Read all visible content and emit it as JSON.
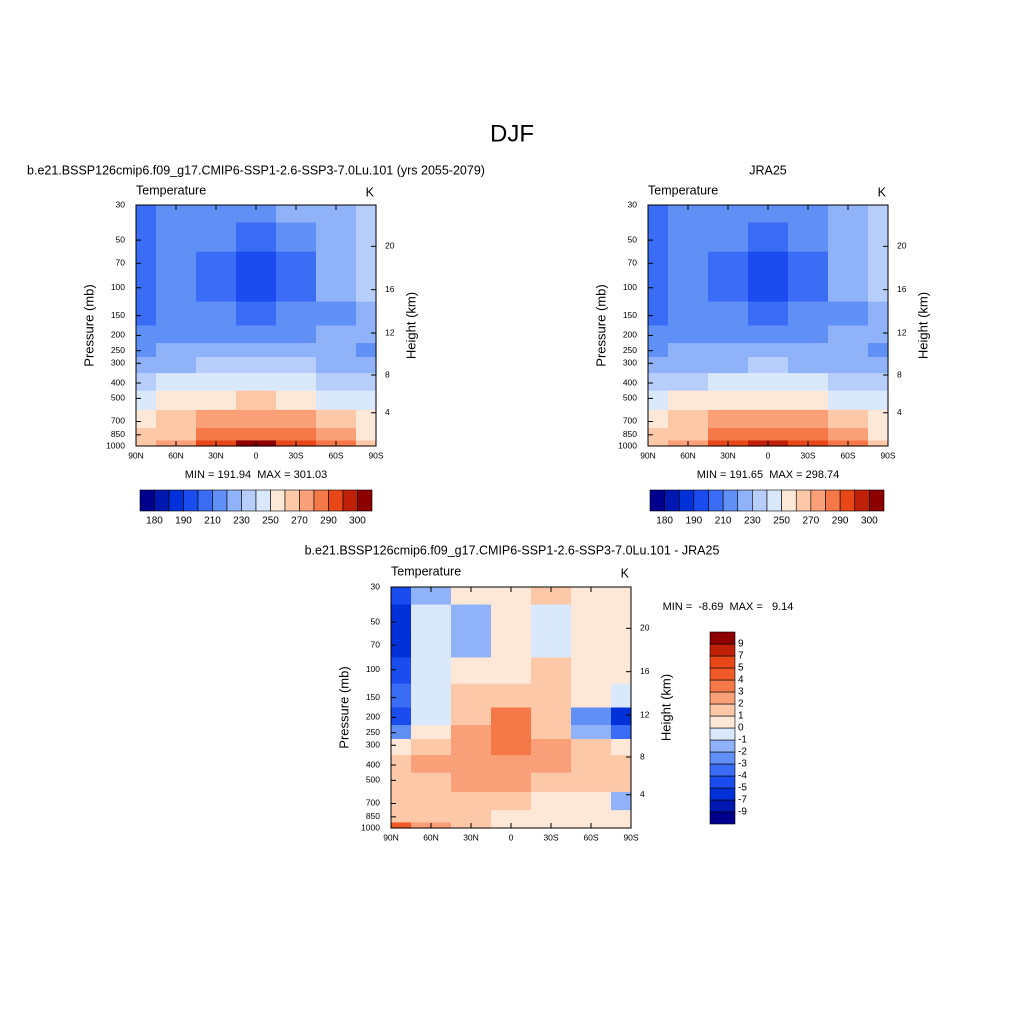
{
  "title": "DJF",
  "chart_data": [
    {
      "type": "contour",
      "title": "b.e21.BSSP126cmip6.f09_g17.CMIP6-SSP1-2.6-SSP3-7.0Lu.101 (yrs 2055-2079)",
      "left_string": "Temperature",
      "right_string": "K",
      "stats": "MIN = 191.94  MAX = 301.03",
      "ylabel": "Pressure (mb)",
      "y2label": "Height (km)",
      "yscale": "log",
      "x": [
        90,
        60,
        30,
        0,
        -30,
        -60,
        -90
      ],
      "y": [
        30,
        50,
        70,
        100,
        150,
        200,
        250,
        300,
        400,
        500,
        700,
        850,
        1000
      ],
      "xlim": [
        90,
        -90
      ],
      "ylim": [
        1000,
        30
      ],
      "y2lim": [
        0.1,
        23.8
      ],
      "xticks": [
        {
          "value": 90,
          "label": "90N"
        },
        {
          "value": 60,
          "label": "60N"
        },
        {
          "value": 30,
          "label": "30N"
        },
        0,
        {
          "value": -30,
          "label": "30S"
        },
        {
          "value": -60,
          "label": "60S"
        },
        {
          "value": -90,
          "label": "90S"
        }
      ],
      "yticks": [
        30,
        50,
        70,
        100,
        150,
        200,
        250,
        300,
        400,
        500,
        700,
        850,
        1000
      ],
      "y2ticks": [
        4,
        8,
        12,
        16,
        20
      ],
      "values": [
        [
          206,
          214,
          219,
          216,
          220,
          226,
          236
        ],
        [
          205,
          213,
          210,
          205,
          212,
          224,
          236
        ],
        [
          204,
          214,
          206,
          198,
          206,
          222,
          234
        ],
        [
          205,
          214,
          206,
          198,
          207,
          220,
          232
        ],
        [
          206,
          215,
          212,
          206,
          212,
          219,
          226
        ],
        [
          212,
          218,
          218,
          216,
          218,
          220,
          222
        ],
        [
          218,
          221,
          223,
          224,
          223,
          222,
          214
        ],
        [
          226,
          227,
          231,
          234,
          230,
          226,
          221
        ],
        [
          236,
          241,
          246,
          249,
          246,
          239,
          232
        ],
        [
          246,
          251,
          256,
          261,
          256,
          249,
          241
        ],
        [
          256,
          263,
          273,
          279,
          274,
          263,
          250
        ],
        [
          262,
          268,
          283,
          288,
          284,
          271,
          256
        ],
        [
          265,
          276,
          292,
          300,
          293,
          281,
          261
        ]
      ],
      "colorbar": {
        "orientation": "horizontal",
        "levels": [
          180,
          185,
          190,
          200,
          210,
          220,
          230,
          240,
          250,
          260,
          270,
          280,
          290,
          295,
          300
        ],
        "ticks": [
          180,
          190,
          210,
          230,
          250,
          270,
          290,
          300
        ],
        "colors": [
          "#00008c",
          "#0018b0",
          "#0030d8",
          "#1a4cf0",
          "#3a6cf5",
          "#6090f5",
          "#90b2f8",
          "#b8cefa",
          "#dae8fc",
          "#fde8d8",
          "#fcc8a8",
          "#f9a078",
          "#f47848",
          "#e84818",
          "#c02008",
          "#8c0000"
        ]
      }
    },
    {
      "type": "contour",
      "title": "JRA25",
      "left_string": "Temperature",
      "right_string": "K",
      "stats": "MIN = 191.65  MAX = 298.74",
      "ylabel": "Pressure (mb)",
      "y2label": "Height (km)",
      "yscale": "log",
      "x": [
        90,
        60,
        30,
        0,
        -30,
        -60,
        -90
      ],
      "y": [
        30,
        50,
        70,
        100,
        150,
        200,
        250,
        300,
        400,
        500,
        700,
        850,
        1000
      ],
      "xlim": [
        90,
        -90
      ],
      "ylim": [
        1000,
        30
      ],
      "y2lim": [
        0.1,
        23.8
      ],
      "xticks": [
        {
          "value": 90,
          "label": "90N"
        },
        {
          "value": 60,
          "label": "60N"
        },
        {
          "value": 30,
          "label": "30N"
        },
        0,
        {
          "value": -30,
          "label": "30S"
        },
        {
          "value": -60,
          "label": "60S"
        },
        {
          "value": -90,
          "label": "90S"
        }
      ],
      "yticks": [
        30,
        50,
        70,
        100,
        150,
        200,
        250,
        300,
        400,
        500,
        700,
        850,
        1000
      ],
      "y2ticks": [
        4,
        8,
        12,
        16,
        20
      ],
      "values": [
        [
          208,
          214,
          218,
          215,
          219,
          225,
          234
        ],
        [
          206,
          213,
          211,
          206,
          212,
          223,
          234
        ],
        [
          205,
          214,
          206,
          198,
          206,
          222,
          233
        ],
        [
          205,
          214,
          206,
          198,
          207,
          220,
          232
        ],
        [
          207,
          215,
          211,
          205,
          211,
          219,
          227
        ],
        [
          213,
          218,
          217,
          214,
          217,
          221,
          225
        ],
        [
          218,
          221,
          222,
          221,
          222,
          223,
          218
        ],
        [
          225,
          226,
          229,
          231,
          229,
          226,
          222
        ],
        [
          235,
          239,
          244,
          247,
          244,
          238,
          232
        ],
        [
          245,
          250,
          254,
          259,
          254,
          248,
          240
        ],
        [
          255,
          262,
          272,
          278,
          273,
          262,
          251
        ],
        [
          260,
          266,
          282,
          287,
          283,
          270,
          256
        ],
        [
          262,
          274,
          291,
          298,
          292,
          280,
          260
        ]
      ],
      "colorbar": {
        "orientation": "horizontal",
        "levels": [
          180,
          185,
          190,
          200,
          210,
          220,
          230,
          240,
          250,
          260,
          270,
          280,
          290,
          295,
          300
        ],
        "ticks": [
          180,
          190,
          210,
          230,
          250,
          270,
          290,
          300
        ],
        "colors": [
          "#00008c",
          "#0018b0",
          "#0030d8",
          "#1a4cf0",
          "#3a6cf5",
          "#6090f5",
          "#90b2f8",
          "#b8cefa",
          "#dae8fc",
          "#fde8d8",
          "#fcc8a8",
          "#f9a078",
          "#f47848",
          "#e84818",
          "#c02008",
          "#8c0000"
        ]
      }
    },
    {
      "type": "contour",
      "title": "b.e21.BSSP126cmip6.f09_g17.CMIP6-SSP1-2.6-SSP3-7.0Lu.101 - JRA25",
      "left_string": "Temperature",
      "right_string": "K",
      "stats": "MIN =  -8.69  MAX =   9.14",
      "ylabel": "Pressure (mb)",
      "y2label": "Height (km)",
      "yscale": "log",
      "x": [
        90,
        60,
        30,
        0,
        -30,
        -60,
        -90
      ],
      "y": [
        30,
        50,
        70,
        100,
        150,
        200,
        250,
        300,
        400,
        500,
        700,
        850,
        1000
      ],
      "xlim": [
        90,
        -90
      ],
      "ylim": [
        1000,
        30
      ],
      "y2lim": [
        0.1,
        23.8
      ],
      "xticks": [
        {
          "value": 90,
          "label": "90N"
        },
        {
          "value": 60,
          "label": "60N"
        },
        {
          "value": 30,
          "label": "30N"
        },
        0,
        {
          "value": -30,
          "label": "30S"
        },
        {
          "value": -60,
          "label": "60S"
        },
        {
          "value": -90,
          "label": "90S"
        }
      ],
      "yticks": [
        30,
        50,
        70,
        100,
        150,
        200,
        250,
        300,
        400,
        500,
        700,
        850,
        1000
      ],
      "y2ticks": [
        4,
        8,
        12,
        16,
        20
      ],
      "values": [
        [
          -5,
          -2,
          0.5,
          0.5,
          1,
          0.5,
          0.5
        ],
        [
          -6,
          -1,
          -2,
          0.5,
          -1,
          0.5,
          0.5
        ],
        [
          -6,
          -1,
          -2,
          0.5,
          -1,
          0.5,
          0.5
        ],
        [
          -5,
          -1,
          0.5,
          0.5,
          1.5,
          0.5,
          0.5
        ],
        [
          -4,
          -1,
          1.5,
          1.5,
          1.5,
          0.5,
          -1
        ],
        [
          -5,
          -1,
          1.5,
          3.5,
          1.5,
          -3,
          -6
        ],
        [
          -3,
          0.5,
          2,
          3.5,
          1.5,
          -2,
          -4
        ],
        [
          0.5,
          1.5,
          2.5,
          3,
          2,
          1,
          0.5
        ],
        [
          1.5,
          2,
          2.5,
          2.5,
          2,
          1.5,
          1
        ],
        [
          1.5,
          1.5,
          2,
          2,
          1.5,
          1,
          1
        ],
        [
          1,
          1,
          1,
          1.5,
          0.5,
          0.5,
          -2
        ],
        [
          1.5,
          1.5,
          1,
          0.5,
          0.5,
          0.5,
          0.5
        ],
        [
          4,
          2.5,
          1,
          0.5,
          0.5,
          0.5,
          0.5
        ]
      ],
      "colorbar": {
        "orientation": "vertical",
        "levels": [
          -9,
          -7,
          -5,
          -4,
          -3,
          -2,
          -1,
          0,
          1,
          2,
          3,
          4,
          5,
          7,
          9
        ],
        "ticks": [
          -9,
          -7,
          -5,
          -4,
          -3,
          -2,
          -1,
          0,
          1,
          2,
          3,
          4,
          5,
          7,
          9
        ],
        "colors": [
          "#00008c",
          "#0018b0",
          "#0030d8",
          "#1a4cf0",
          "#3a6cf5",
          "#6090f5",
          "#90b2f8",
          "#dae8fc",
          "#fde8d8",
          "#fcc8a8",
          "#f9a078",
          "#f47848",
          "#f05a28",
          "#e84818",
          "#c02008",
          "#8c0000"
        ]
      }
    }
  ]
}
